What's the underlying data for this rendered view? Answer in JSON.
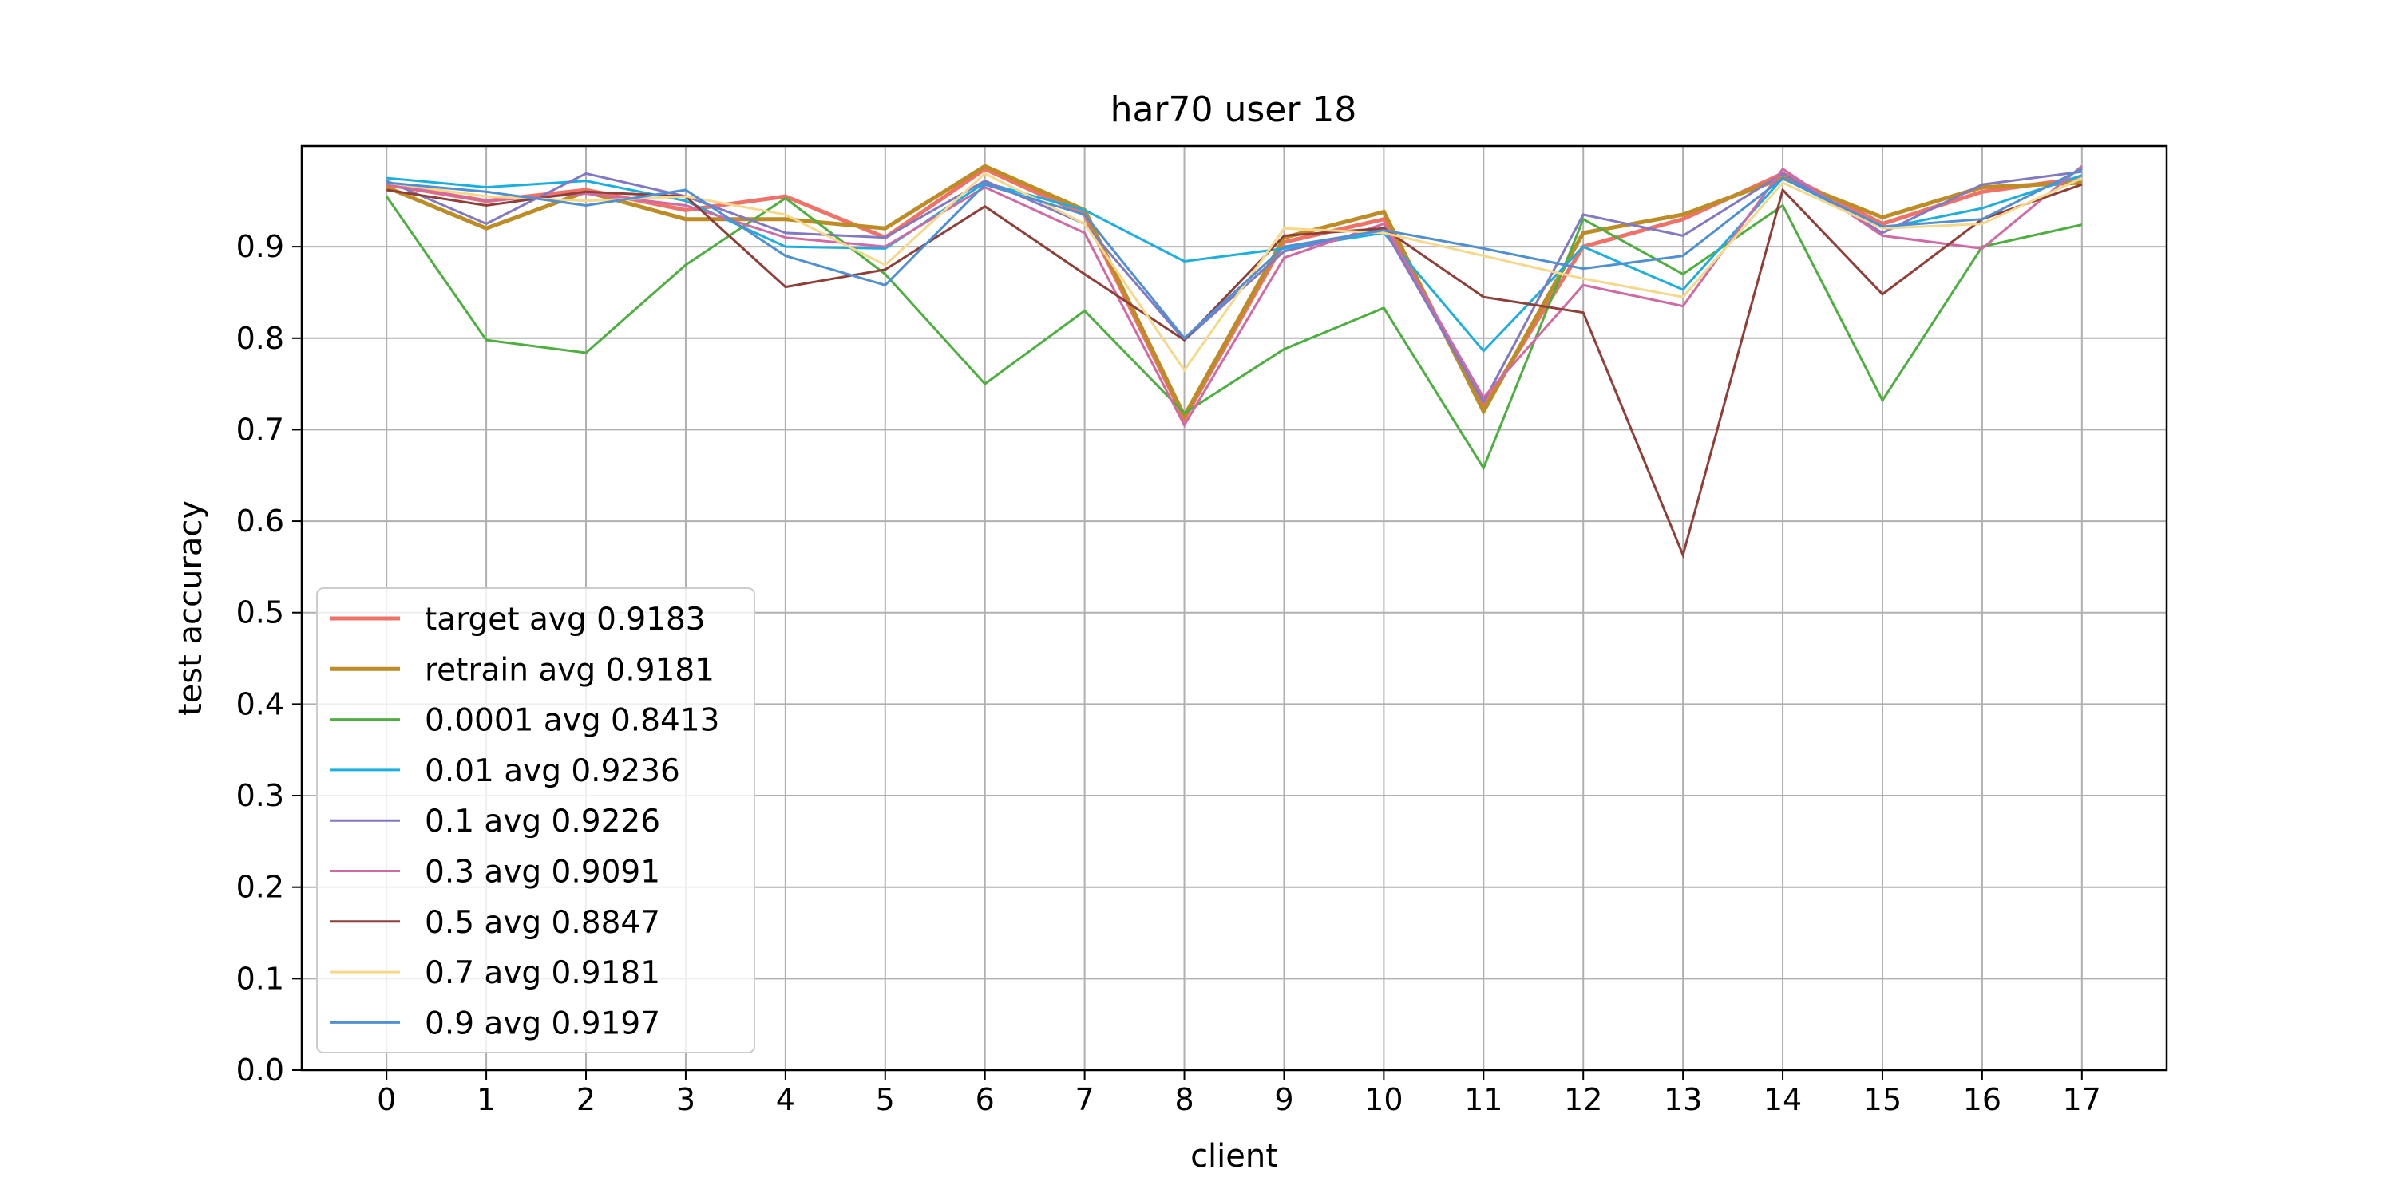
{
  "chart_data": {
    "type": "line",
    "title": "har70 user 18",
    "xlabel": "client",
    "ylabel": "test accuracy",
    "x": [
      0,
      1,
      2,
      3,
      4,
      5,
      6,
      7,
      8,
      9,
      10,
      11,
      12,
      13,
      14,
      15,
      16,
      17
    ],
    "x_ticks": [
      "0",
      "1",
      "2",
      "3",
      "4",
      "5",
      "6",
      "7",
      "8",
      "9",
      "10",
      "11",
      "12",
      "13",
      "14",
      "15",
      "16",
      "17"
    ],
    "xlim": [
      -0.85,
      17.85
    ],
    "ylim": [
      0.0,
      1.01
    ],
    "y_ticks": [
      "0.0",
      "0.1",
      "0.2",
      "0.3",
      "0.4",
      "0.5",
      "0.6",
      "0.7",
      "0.8",
      "0.9"
    ],
    "y_tick_values": [
      0.0,
      0.1,
      0.2,
      0.3,
      0.4,
      0.5,
      0.6,
      0.7,
      0.8,
      0.9
    ],
    "grid": true,
    "legend_position": "lower-left",
    "series": [
      {
        "name": "target avg 0.9183",
        "color": "#f07167",
        "values": [
          0.968,
          0.95,
          0.962,
          0.94,
          0.955,
          0.91,
          0.985,
          0.935,
          0.712,
          0.905,
          0.93,
          0.725,
          0.9,
          0.93,
          0.98,
          0.925,
          0.96,
          0.975
        ]
      },
      {
        "name": "retrain avg 0.9181",
        "color": "#bd8c24",
        "values": [
          0.965,
          0.92,
          0.96,
          0.93,
          0.93,
          0.92,
          0.988,
          0.94,
          0.715,
          0.91,
          0.938,
          0.72,
          0.915,
          0.935,
          0.975,
          0.932,
          0.965,
          0.97
        ]
      },
      {
        "name": "0.0001 avg 0.8413",
        "color": "#4caf3f",
        "values": [
          0.955,
          0.798,
          0.784,
          0.88,
          0.953,
          0.87,
          0.75,
          0.83,
          0.718,
          0.788,
          0.833,
          0.658,
          0.93,
          0.87,
          0.945,
          0.732,
          0.9,
          0.924
        ]
      },
      {
        "name": "0.01 avg 0.9236",
        "color": "#1bafe0",
        "values": [
          0.975,
          0.965,
          0.972,
          0.95,
          0.9,
          0.898,
          0.97,
          0.94,
          0.884,
          0.898,
          0.915,
          0.786,
          0.9,
          0.853,
          0.975,
          0.92,
          0.942,
          0.978
        ]
      },
      {
        "name": "0.1 avg 0.9226",
        "color": "#8179c4",
        "values": [
          0.972,
          0.925,
          0.98,
          0.955,
          0.915,
          0.91,
          0.972,
          0.925,
          0.798,
          0.895,
          0.92,
          0.73,
          0.935,
          0.912,
          0.98,
          0.915,
          0.968,
          0.982
        ]
      },
      {
        "name": "0.3 avg 0.9091",
        "color": "#d16aa4",
        "values": [
          0.968,
          0.95,
          0.958,
          0.945,
          0.91,
          0.9,
          0.965,
          0.915,
          0.705,
          0.888,
          0.925,
          0.735,
          0.858,
          0.835,
          0.985,
          0.912,
          0.898,
          0.988
        ]
      },
      {
        "name": "0.5 avg 0.8847",
        "color": "#8f3e38",
        "values": [
          0.962,
          0.945,
          0.96,
          0.955,
          0.856,
          0.875,
          0.944,
          0.87,
          0.798,
          0.912,
          0.92,
          0.845,
          0.828,
          0.563,
          0.962,
          0.848,
          0.93,
          0.968
        ]
      },
      {
        "name": "0.7 avg 0.9181",
        "color": "#f5d88a",
        "values": [
          0.97,
          0.955,
          0.95,
          0.955,
          0.935,
          0.88,
          0.98,
          0.925,
          0.765,
          0.92,
          0.915,
          0.89,
          0.865,
          0.845,
          0.97,
          0.92,
          0.925,
          0.975
        ]
      },
      {
        "name": "0.9 avg 0.9197",
        "color": "#4f8fd4",
        "values": [
          0.97,
          0.96,
          0.945,
          0.962,
          0.89,
          0.858,
          0.968,
          0.935,
          0.8,
          0.9,
          0.918,
          0.898,
          0.876,
          0.89,
          0.975,
          0.922,
          0.93,
          0.985
        ]
      }
    ]
  }
}
